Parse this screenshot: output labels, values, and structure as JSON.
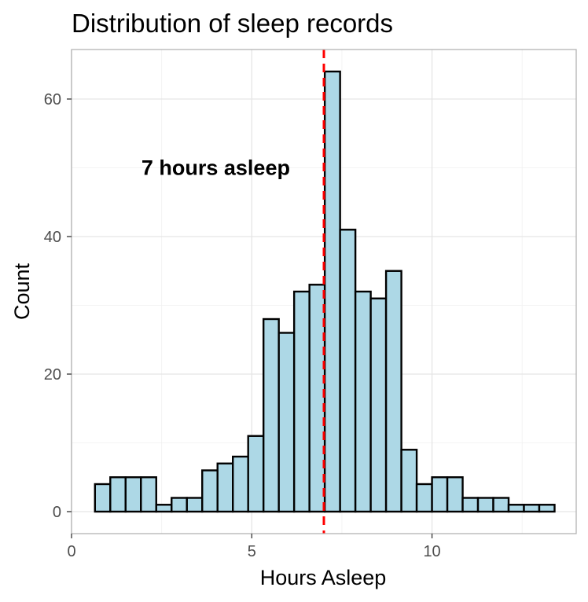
{
  "chart_data": {
    "type": "bar",
    "title": "Distribution of sleep records",
    "xlabel": "Hours Asleep",
    "ylabel": "Count",
    "xlim": [
      0,
      14
    ],
    "ylim": [
      -3.2,
      67.2
    ],
    "x_ticks": [
      0,
      5,
      10
    ],
    "y_ticks": [
      0,
      20,
      40,
      60
    ],
    "grid": true,
    "bin_width": 0.425,
    "bins": [
      {
        "x0": 0.65,
        "value": 4
      },
      {
        "x0": 1.075,
        "value": 5
      },
      {
        "x0": 1.5,
        "value": 5
      },
      {
        "x0": 1.925,
        "value": 5
      },
      {
        "x0": 2.35,
        "value": 1
      },
      {
        "x0": 2.775,
        "value": 2
      },
      {
        "x0": 3.2,
        "value": 2
      },
      {
        "x0": 3.625,
        "value": 6
      },
      {
        "x0": 4.05,
        "value": 7
      },
      {
        "x0": 4.475,
        "value": 8
      },
      {
        "x0": 4.9,
        "value": 11
      },
      {
        "x0": 5.325,
        "value": 28
      },
      {
        "x0": 5.75,
        "value": 26
      },
      {
        "x0": 6.175,
        "value": 32
      },
      {
        "x0": 6.6,
        "value": 33
      },
      {
        "x0": 7.025,
        "value": 64
      },
      {
        "x0": 7.45,
        "value": 41
      },
      {
        "x0": 7.875,
        "value": 32
      },
      {
        "x0": 8.3,
        "value": 31
      },
      {
        "x0": 8.725,
        "value": 35
      },
      {
        "x0": 9.15,
        "value": 9
      },
      {
        "x0": 9.575,
        "value": 4
      },
      {
        "x0": 10.0,
        "value": 5
      },
      {
        "x0": 10.425,
        "value": 5
      },
      {
        "x0": 10.85,
        "value": 2
      },
      {
        "x0": 11.275,
        "value": 2
      },
      {
        "x0": 11.7,
        "value": 2
      },
      {
        "x0": 12.125,
        "value": 1
      },
      {
        "x0": 12.55,
        "value": 1
      },
      {
        "x0": 12.975,
        "value": 1
      }
    ],
    "reference_line": {
      "x": 7,
      "color": "#ff0000",
      "style": "dashed"
    },
    "annotation": {
      "text": "7 hours asleep",
      "x": 4,
      "y": 50
    },
    "fill_color": "#add8e6",
    "outline_color": "#000000"
  }
}
